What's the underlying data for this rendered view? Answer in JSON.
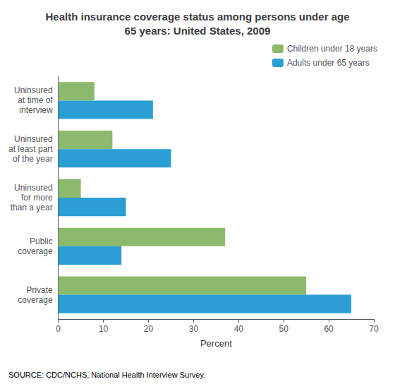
{
  "chart_data": {
    "type": "bar",
    "orientation": "horizontal",
    "title": "Health insurance coverage status among persons under age\n65 years: United States, 2009",
    "categories": [
      "Uninsured\nat time of\ninterview",
      "Uninsured\nat least part\nof the year",
      "Uninsured\nfor more\nthan a year",
      "Public\ncoverage",
      "Private\ncoverage"
    ],
    "series": [
      {
        "name": "Children under 18 years",
        "color": "#8db96e",
        "values": [
          8,
          12,
          5,
          37,
          55
        ]
      },
      {
        "name": "Adults under 65 years",
        "color": "#2b9fd4",
        "values": [
          21,
          25,
          15,
          14,
          65
        ]
      }
    ],
    "xlabel": "Percent",
    "xlim": [
      0,
      70
    ],
    "xticks": [
      0,
      10,
      20,
      30,
      40,
      50,
      60,
      70
    ],
    "grid": false,
    "legend": "upper right",
    "annotations": [
      "SOURCE: CDC/NCHS, National Health Interview Survey."
    ]
  }
}
